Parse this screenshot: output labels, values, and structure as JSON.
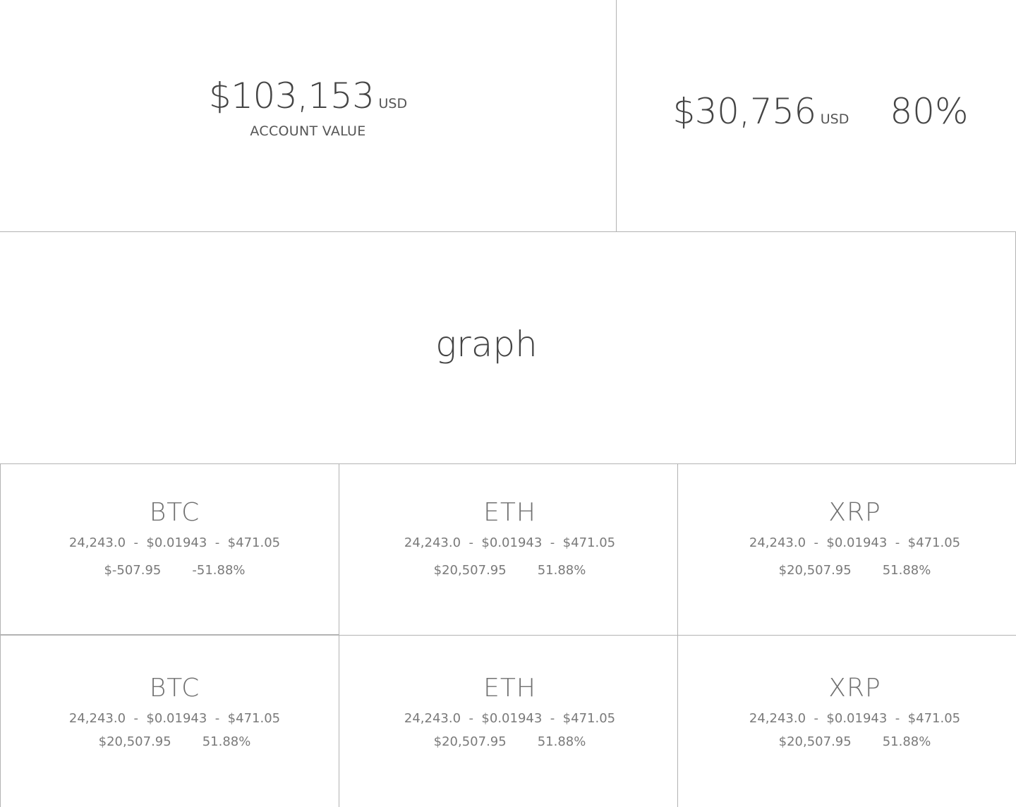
{
  "account": {
    "value": "$103,153",
    "currency": "USD",
    "label": "ACCOUNT VALUE"
  },
  "secondary": {
    "value": "$30,756",
    "currency": "USD",
    "percent": "80%"
  },
  "graph": {
    "label": "graph"
  },
  "coins": [
    {
      "symbol": "BTC",
      "stats": "24,243.0  -  $0.01943  -  $471.05",
      "change_value": "$-507.95",
      "change_percent": "-51.88%"
    },
    {
      "symbol": "ETH",
      "stats": "24,243.0  -  $0.01943  -  $471.05",
      "change_value": "$20,507.95",
      "change_percent": "51.88%"
    },
    {
      "symbol": "XRP",
      "stats": "24,243.0  -  $0.01943  -  $471.05",
      "change_value": "$20,507.95",
      "change_percent": "51.88%"
    },
    {
      "symbol": "BTC",
      "stats": "24,243.0  -  $0.01943  -  $471.05",
      "change_value": "$20,507.95",
      "change_percent": "51.88%"
    },
    {
      "symbol": "ETH",
      "stats": "24,243.0  -  $0.01943  -  $471.05",
      "change_value": "$20,507.95",
      "change_percent": "51.88%"
    },
    {
      "symbol": "XRP",
      "stats": "24,243.0  -  $0.01943  -  $471.05",
      "change_value": "$20,507.95",
      "change_percent": "51.88%"
    }
  ]
}
